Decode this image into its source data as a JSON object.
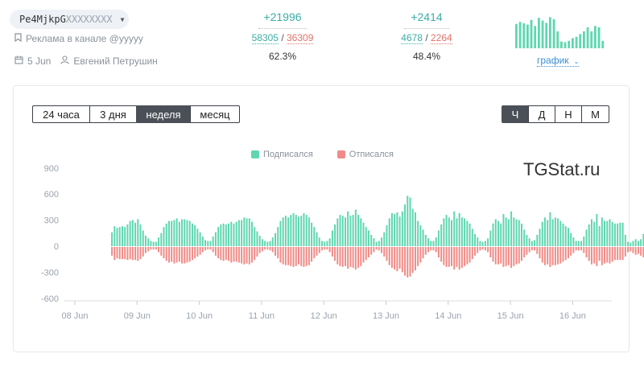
{
  "header": {
    "token_visible": "Pe4MjkpG",
    "token_masked": "XXXXXXXX",
    "ad_label": "Реклама в канале @yyyyy",
    "date": "5 Jun",
    "author": "Евгений Петрушин",
    "stats": [
      {
        "delta": "+21996",
        "sub_count": "58305",
        "unsub_count": "36309",
        "percent": "62.3%"
      },
      {
        "delta": "+2414",
        "sub_count": "4678",
        "unsub_count": "2264",
        "percent": "48.4%"
      }
    ],
    "graph_link": "график"
  },
  "colors": {
    "subscribed": "#5fd6b0",
    "unsubscribed": "#f08b87",
    "accent": "#3aaea5",
    "link": "#3a8fd4"
  },
  "period_buttons": [
    {
      "label": "24 часа",
      "active": false
    },
    {
      "label": "3 дня",
      "active": false
    },
    {
      "label": "неделя",
      "active": true
    },
    {
      "label": "месяц",
      "active": false
    }
  ],
  "granularity_buttons": [
    {
      "label": "Ч",
      "active": true
    },
    {
      "label": "Д",
      "active": false
    },
    {
      "label": "Н",
      "active": false
    },
    {
      "label": "М",
      "active": false
    }
  ],
  "watermark": "TGStat.ru",
  "sparkline": [
    0.72,
    0.78,
    0.74,
    0.7,
    0.84,
    0.66,
    0.9,
    0.82,
    0.75,
    0.92,
    0.86,
    0.5,
    0.2,
    0.18,
    0.22,
    0.3,
    0.34,
    0.42,
    0.5,
    0.62,
    0.5,
    0.66,
    0.62,
    0.22
  ],
  "chart_data": {
    "type": "bar",
    "legend": [
      "Подписался",
      "Отписался"
    ],
    "xlabels": [
      "08 Jun",
      "09 Jun",
      "10 Jun",
      "11 Jun",
      "12 Jun",
      "13 Jun",
      "14 Jun",
      "15 Jun",
      "16 Jun"
    ],
    "yticks": [
      "900",
      "600",
      "300",
      "0",
      "-300",
      "-600"
    ],
    "ylim": [
      -600,
      900
    ],
    "bar_width_hours": 1,
    "start_hour_offset": 14,
    "series": [
      {
        "name": "Подписался",
        "values": [
          160,
          230,
          210,
          220,
          230,
          220,
          250,
          290,
          300,
          270,
          310,
          250,
          180,
          120,
          90,
          60,
          50,
          50,
          100,
          150,
          220,
          260,
          290,
          290,
          300,
          320,
          280,
          310,
          310,
          300,
          290,
          260,
          240,
          200,
          160,
          110,
          70,
          60,
          60,
          110,
          160,
          220,
          250,
          260,
          250,
          260,
          280,
          260,
          280,
          300,
          300,
          330,
          320,
          320,
          280,
          220,
          170,
          120,
          80,
          60,
          50,
          60,
          100,
          150,
          220,
          290,
          330,
          350,
          330,
          360,
          380,
          360,
          340,
          350,
          380,
          360,
          330,
          270,
          220,
          160,
          100,
          60,
          50,
          60,
          90,
          180,
          250,
          320,
          360,
          350,
          330,
          400,
          350,
          360,
          420,
          360,
          320,
          270,
          220,
          180,
          130,
          90,
          50,
          60,
          100,
          160,
          240,
          320,
          380,
          370,
          390,
          340,
          400,
          480,
          580,
          560,
          430,
          390,
          290,
          240,
          190,
          130,
          90,
          60,
          60,
          100,
          180,
          250,
          320,
          360,
          330,
          300,
          400,
          320,
          380,
          330,
          320,
          290,
          260,
          200,
          140,
          100,
          60,
          50,
          60,
          90,
          180,
          260,
          310,
          290,
          260,
          370,
          330,
          310,
          400,
          330,
          310,
          300,
          260,
          190,
          130,
          90,
          60,
          70,
          130,
          200,
          280,
          330,
          300,
          390,
          310,
          330,
          320,
          290,
          260,
          230,
          210,
          150,
          100,
          60,
          60,
          60,
          110,
          190,
          250,
          310,
          280,
          370,
          230,
          330,
          290,
          290,
          310,
          280,
          260,
          260,
          270,
          270,
          130,
          50,
          40,
          60,
          80,
          60,
          80,
          140,
          170,
          210,
          230,
          210,
          60
        ]
      },
      {
        "name": "Отписался",
        "values": [
          100,
          150,
          130,
          140,
          140,
          140,
          150,
          140,
          150,
          150,
          160,
          140,
          110,
          70,
          50,
          30,
          30,
          30,
          60,
          100,
          130,
          160,
          180,
          170,
          190,
          180,
          170,
          190,
          190,
          180,
          170,
          150,
          130,
          110,
          90,
          60,
          40,
          30,
          30,
          60,
          100,
          130,
          150,
          160,
          150,
          160,
          180,
          170,
          170,
          180,
          190,
          200,
          190,
          200,
          180,
          150,
          110,
          70,
          50,
          30,
          30,
          40,
          60,
          100,
          130,
          180,
          200,
          210,
          210,
          220,
          230,
          220,
          200,
          220,
          230,
          220,
          210,
          170,
          130,
          100,
          70,
          40,
          30,
          30,
          60,
          110,
          160,
          200,
          220,
          230,
          220,
          250,
          230,
          240,
          260,
          240,
          220,
          180,
          150,
          120,
          90,
          60,
          30,
          40,
          70,
          110,
          160,
          210,
          240,
          260,
          280,
          250,
          290,
          330,
          350,
          340,
          300,
          270,
          220,
          180,
          130,
          90,
          60,
          40,
          40,
          60,
          120,
          170,
          210,
          230,
          230,
          220,
          260,
          230,
          260,
          240,
          220,
          200,
          180,
          140,
          100,
          70,
          40,
          30,
          40,
          60,
          120,
          170,
          200,
          200,
          190,
          230,
          220,
          210,
          240,
          220,
          200,
          190,
          160,
          120,
          90,
          60,
          40,
          40,
          80,
          130,
          180,
          210,
          200,
          230,
          210,
          210,
          200,
          190,
          170,
          150,
          130,
          100,
          70,
          40,
          40,
          40,
          70,
          120,
          160,
          200,
          190,
          220,
          160,
          210,
          190,
          180,
          190,
          170,
          150,
          150,
          150,
          150,
          110,
          60,
          50,
          70,
          90,
          80,
          100,
          120,
          130,
          150,
          150,
          150,
          60
        ]
      }
    ]
  }
}
